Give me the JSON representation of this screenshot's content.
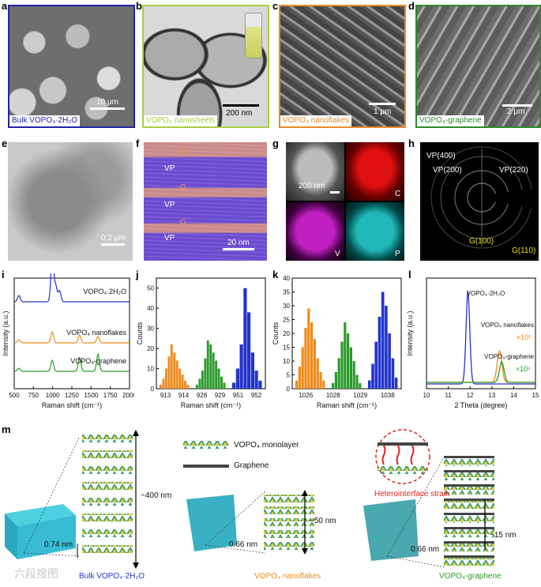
{
  "panels": {
    "a": {
      "label": "a",
      "caption": "Bulk VOPO₄·2H₂O",
      "scale": "10 μm",
      "color": "#2222aa"
    },
    "b": {
      "label": "b",
      "caption": "VOPO₄ nanosheets",
      "scale": "200 nm",
      "color": "#a8cc44"
    },
    "c": {
      "label": "c",
      "caption": "VOPO₄ nanoflakes",
      "scale": "1 μm",
      "color": "#e88a2a"
    },
    "d": {
      "label": "d",
      "caption": "VOPO₄-graphene",
      "scale": "2 μm",
      "color": "#2a8a2a"
    },
    "e": {
      "label": "e",
      "scale": "0.2 μm"
    },
    "f": {
      "label": "f",
      "scale": "20 nm",
      "layers": [
        "G",
        "VP",
        "G",
        "VP",
        "G",
        "VP"
      ]
    },
    "g": {
      "label": "g",
      "scale": "200 nm",
      "maps": [
        "C",
        "V",
        "P"
      ]
    },
    "h": {
      "label": "h",
      "rings": [
        "VP(400)",
        "VP(200)",
        "VP(220)",
        "G(100)",
        "G(110)"
      ]
    },
    "i": {
      "label": "i"
    },
    "j": {
      "label": "j"
    },
    "k": {
      "label": "k"
    },
    "l": {
      "label": "l"
    },
    "m": {
      "label": "m"
    }
  },
  "chart_data": [
    {
      "type": "line",
      "panel": "i",
      "xlabel": "Raman shift (cm⁻¹)",
      "ylabel": "Intensity (a.u.)",
      "xticks": [
        "500",
        "750",
        "1000",
        "1250",
        "1500",
        "1750",
        "2000"
      ],
      "xlim": [
        500,
        2000
      ],
      "series": [
        {
          "name": "VOPO₄·2H₂O",
          "color": "#2233cc"
        },
        {
          "name": "VOPO₄ nanoflakes",
          "color": "#f08a1a"
        },
        {
          "name": "VOPO₄-graphene",
          "color": "#2a9a2a"
        }
      ]
    },
    {
      "type": "bar",
      "panel": "j",
      "xlabel": "Raman shift (cm⁻¹)",
      "ylabel": "Counts",
      "xticks": [
        "913",
        "914",
        "928",
        "929",
        "951",
        "952"
      ],
      "yticks": [
        "0",
        "10",
        "20",
        "30",
        "40",
        "50"
      ],
      "ylim": [
        0,
        55
      ],
      "series": [
        {
          "color": "#f08a1a",
          "values": [
            2,
            5,
            10,
            16,
            22,
            18,
            14,
            10,
            7,
            4,
            2
          ]
        },
        {
          "color": "#2a9a2a",
          "values": [
            2,
            5,
            9,
            15,
            24,
            22,
            18,
            14,
            10,
            6,
            3
          ]
        },
        {
          "color": "#2233cc",
          "values": [
            3,
            10,
            22,
            50,
            38,
            18,
            9,
            4
          ]
        }
      ]
    },
    {
      "type": "bar",
      "panel": "k",
      "xlabel": "Raman shift (cm⁻¹)",
      "ylabel": "Counts",
      "xticks": [
        "1026",
        "1028",
        "1029",
        "1038"
      ],
      "yticks": [
        "0",
        "5",
        "10",
        "15",
        "20",
        "25",
        "30",
        "35",
        "40"
      ],
      "ylim": [
        0,
        40
      ],
      "series": [
        {
          "color": "#f08a1a",
          "values": [
            3,
            8,
            15,
            22,
            29,
            24,
            18,
            11,
            6,
            3
          ]
        },
        {
          "color": "#2a9a2a",
          "values": [
            2,
            6,
            11,
            17,
            24,
            20,
            15,
            10,
            5,
            2
          ]
        },
        {
          "color": "#2233cc",
          "values": [
            3,
            9,
            17,
            26,
            35,
            30,
            20,
            11,
            4
          ]
        }
      ]
    },
    {
      "type": "line",
      "panel": "l",
      "xlabel": "2 Theta (degree)",
      "ylabel": "Intensity (a.u.)",
      "xticks": [
        "10",
        "11",
        "12",
        "13",
        "14",
        "15"
      ],
      "xlim": [
        10,
        15
      ],
      "series": [
        {
          "name": "VOPO₄·2H₂O",
          "color": "#2233cc"
        },
        {
          "name": "VOPO₄ nanoflakes ×10²",
          "color": "#f08a1a"
        },
        {
          "name": "VOPO₄-graphene ×10⁴",
          "color": "#2a9a2a"
        }
      ],
      "annotations": [
        "×10²",
        "×10⁴"
      ]
    }
  ],
  "panel_m": {
    "legend": [
      "VOPO₄ monolayer",
      "Graphene"
    ],
    "labels": {
      "bulk": "Bulk VOPO₄·2H₂O",
      "nanoflakes": "VOPO₄ nanoflakes",
      "graphene": "VOPO₄-graphene",
      "strain": "Heterointerface strain",
      "d_bulk": "~400 nm",
      "d_flake": "~50 nm",
      "d_gr": "~15 nm",
      "s1": "0.74 nm",
      "s2": "0.66 nm",
      "s3": "0.66 nm"
    },
    "colors": {
      "bulk": "#2233cc",
      "nanoflakes": "#f08a1a",
      "graphene": "#2a9a2a",
      "strain": "#e02020"
    }
  },
  "watermark": "六段搜图"
}
